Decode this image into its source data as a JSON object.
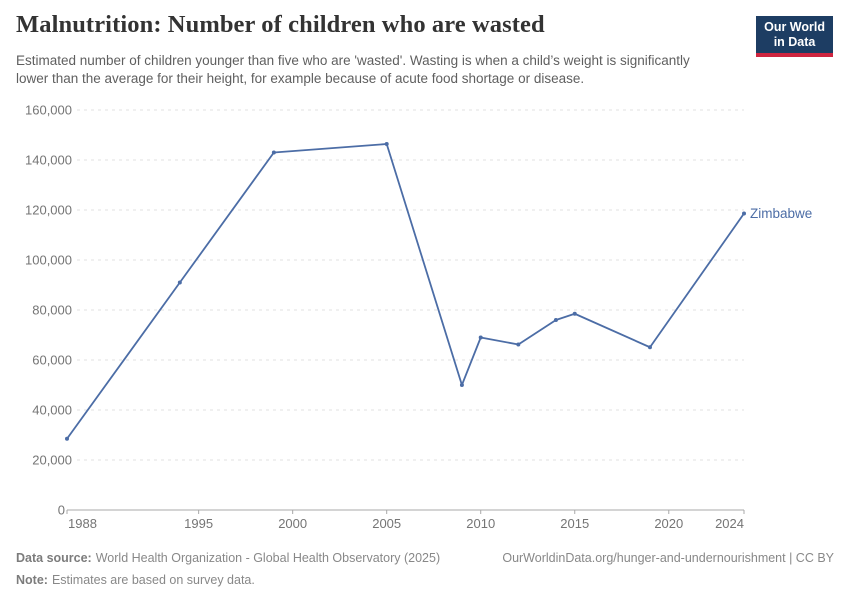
{
  "header": {
    "title": "Malnutrition: Number of children who are wasted",
    "subtitle": "Estimated number of children younger than five who are 'wasted'. Wasting is when a child’s weight is significantly lower than the average for their height, for example because of acute food shortage or disease.",
    "logo": {
      "line1": "Our World",
      "line2": "in Data"
    }
  },
  "chart_data": {
    "type": "line",
    "title": "Malnutrition: Number of children who are wasted",
    "x": [
      1988,
      1994,
      1999,
      2005,
      2009,
      2010,
      2012,
      2014,
      2015,
      2019,
      2024
    ],
    "series": [
      {
        "name": "Zimbabwe",
        "color": "#4c6da6",
        "values": [
          28500,
          91000,
          143000,
          146400,
          50000,
          69000,
          66200,
          76000,
          78500,
          65100,
          118600
        ]
      }
    ],
    "xlabel": "",
    "ylabel": "",
    "xlim": [
      1988,
      2024
    ],
    "ylim": [
      0,
      160000
    ],
    "xticks": [
      1988,
      1995,
      2000,
      2005,
      2010,
      2015,
      2020,
      2024
    ],
    "yticks": [
      0,
      20000,
      40000,
      60000,
      80000,
      100000,
      120000,
      140000,
      160000
    ],
    "ytick_labels": [
      "0",
      "20,000",
      "40,000",
      "60,000",
      "80,000",
      "100,000",
      "120,000",
      "140,000",
      "160,000"
    ],
    "grid": "horizontal-dashed",
    "legend": "end-of-line-label",
    "marker": "dot"
  },
  "footer": {
    "datasource_label": "Data source:",
    "datasource_text": "World Health Organization - Global Health Observatory (2025)",
    "note_label": "Note:",
    "note_text": "Estimates are based on survey data.",
    "link": "OurWorldinData.org/hunger-and-undernourishment | CC BY"
  },
  "colors": {
    "line": "#4c6da6",
    "grid": "#e2e2e2",
    "axis": "#a8a8a8",
    "tick_text": "#757575",
    "title_text": "#333333",
    "subtitle_text": "#5f5f5f",
    "footer_text": "#888888",
    "logo_navy": "#1d3d63",
    "logo_red": "#cf2540"
  }
}
